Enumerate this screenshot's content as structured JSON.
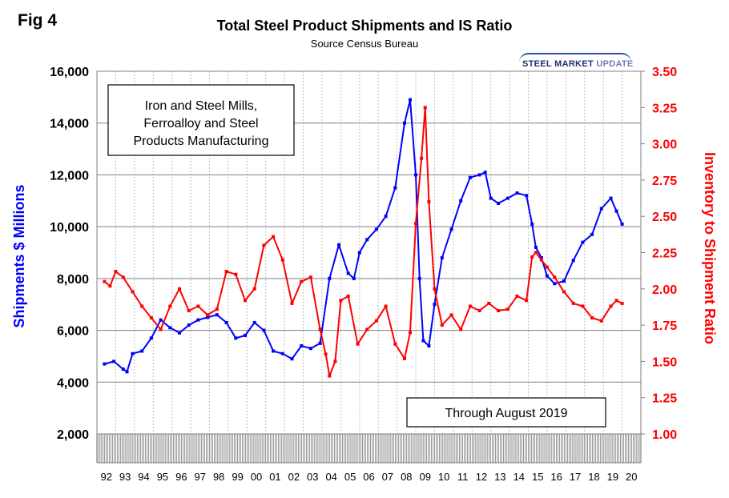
{
  "header": {
    "fig_label": "Fig 4",
    "title": "Total Steel Product Shipments and IS Ratio",
    "subtitle": "Source Census Bureau",
    "logo_text_1": "STEEL MARKET",
    "logo_text_2": "UPDATE"
  },
  "annotations": {
    "box1_lines": [
      "Iron and Steel Mills,",
      "Ferroalloy and Steel",
      "Products Manufacturing"
    ],
    "box2": "Through August 2019"
  },
  "colors": {
    "shipments": "#0000ff",
    "ratio": "#ff0000",
    "grid": "#808080",
    "vgrid": "#bfbfbf"
  },
  "chart_data": {
    "type": "line",
    "title": "Total Steel Product Shipments and IS Ratio",
    "subtitle": "Source Census Bureau",
    "xlabel": "",
    "ylabel": "Shipments $ Millions",
    "y2label": "Inventory to Shipment Ratio",
    "ylim": [
      2000,
      16000
    ],
    "y2lim": [
      1.0,
      3.5
    ],
    "yticks": [
      "2,000",
      "4,000",
      "6,000",
      "8,000",
      "10,000",
      "12,000",
      "14,000",
      "16,000"
    ],
    "y2ticks": [
      "1.00",
      "1.25",
      "1.50",
      "1.75",
      "2.00",
      "2.25",
      "2.50",
      "2.75",
      "3.00",
      "3.25",
      "3.50"
    ],
    "categories": [
      "92",
      "93",
      "94",
      "95",
      "96",
      "97",
      "98",
      "99",
      "00",
      "01",
      "02",
      "03",
      "04",
      "05",
      "06",
      "07",
      "08",
      "09",
      "10",
      "11",
      "12",
      "13",
      "14",
      "15",
      "16",
      "17",
      "18",
      "19",
      "20"
    ],
    "grid": true,
    "legend": "none",
    "series": [
      {
        "axis": "left",
        "color": "#0000ff",
        "x": [
          1992.0,
          1992.5,
          1993.0,
          1993.2,
          1993.5,
          1994.0,
          1994.5,
          1995.0,
          1995.5,
          1996.0,
          1996.5,
          1997.0,
          1997.5,
          1998.0,
          1998.5,
          1999.0,
          1999.5,
          2000.0,
          2000.5,
          2001.0,
          2001.5,
          2002.0,
          2002.5,
          2003.0,
          2003.5,
          2004.0,
          2004.5,
          2005.0,
          2005.3,
          2005.6,
          2006.0,
          2006.5,
          2007.0,
          2007.5,
          2008.0,
          2008.3,
          2008.6,
          2008.8,
          2009.0,
          2009.3,
          2009.6,
          2010.0,
          2010.5,
          2011.0,
          2011.5,
          2012.0,
          2012.3,
          2012.6,
          2013.0,
          2013.5,
          2014.0,
          2014.5,
          2014.8,
          2015.0,
          2015.3,
          2015.6,
          2016.0,
          2016.5,
          2017.0,
          2017.5,
          2018.0,
          2018.5,
          2019.0,
          2019.3,
          2019.6
        ],
        "y": [
          4700,
          4800,
          4500,
          4400,
          5100,
          5200,
          5700,
          6400,
          6100,
          5900,
          6200,
          6400,
          6500,
          6600,
          6300,
          5700,
          5800,
          6300,
          6000,
          5200,
          5100,
          4900,
          5400,
          5300,
          5500,
          8000,
          9300,
          8200,
          8000,
          9000,
          9500,
          9900,
          10400,
          11500,
          14000,
          14900,
          12000,
          8000,
          5600,
          5400,
          7000,
          8800,
          9900,
          11000,
          11900,
          12000,
          12100,
          11100,
          10900,
          11100,
          11300,
          11200,
          10100,
          9200,
          8800,
          8100,
          7800,
          7900,
          8700,
          9400,
          9700,
          10700,
          11100,
          10600,
          10100
        ]
      },
      {
        "axis": "right",
        "color": "#ff0000",
        "x": [
          1992.0,
          1992.3,
          1992.6,
          1993.0,
          1993.5,
          1994.0,
          1994.5,
          1995.0,
          1995.5,
          1996.0,
          1996.5,
          1997.0,
          1997.5,
          1998.0,
          1998.5,
          1999.0,
          1999.5,
          2000.0,
          2000.5,
          2001.0,
          2001.5,
          2002.0,
          2002.5,
          2003.0,
          2003.5,
          2003.8,
          2004.0,
          2004.3,
          2004.6,
          2005.0,
          2005.5,
          2006.0,
          2006.5,
          2007.0,
          2007.5,
          2008.0,
          2008.3,
          2008.6,
          2008.9,
          2009.1,
          2009.3,
          2009.6,
          2010.0,
          2010.5,
          2011.0,
          2011.5,
          2012.0,
          2012.5,
          2013.0,
          2013.5,
          2014.0,
          2014.5,
          2014.8,
          2015.0,
          2015.3,
          2015.6,
          2016.0,
          2016.5,
          2017.0,
          2017.5,
          2018.0,
          2018.5,
          2019.0,
          2019.3,
          2019.6
        ],
        "y": [
          2.05,
          2.02,
          2.12,
          2.08,
          1.98,
          1.88,
          1.8,
          1.72,
          1.88,
          2.0,
          1.85,
          1.88,
          1.82,
          1.86,
          2.12,
          2.1,
          1.92,
          2.0,
          2.3,
          2.36,
          2.2,
          1.9,
          2.05,
          2.08,
          1.72,
          1.55,
          1.4,
          1.5,
          1.92,
          1.95,
          1.62,
          1.72,
          1.78,
          1.88,
          1.62,
          1.52,
          1.7,
          2.45,
          2.9,
          3.25,
          2.6,
          2.0,
          1.75,
          1.82,
          1.72,
          1.88,
          1.85,
          1.9,
          1.85,
          1.86,
          1.95,
          1.92,
          2.22,
          2.25,
          2.2,
          2.15,
          2.08,
          1.98,
          1.9,
          1.88,
          1.8,
          1.78,
          1.88,
          1.92,
          1.9
        ]
      }
    ]
  }
}
